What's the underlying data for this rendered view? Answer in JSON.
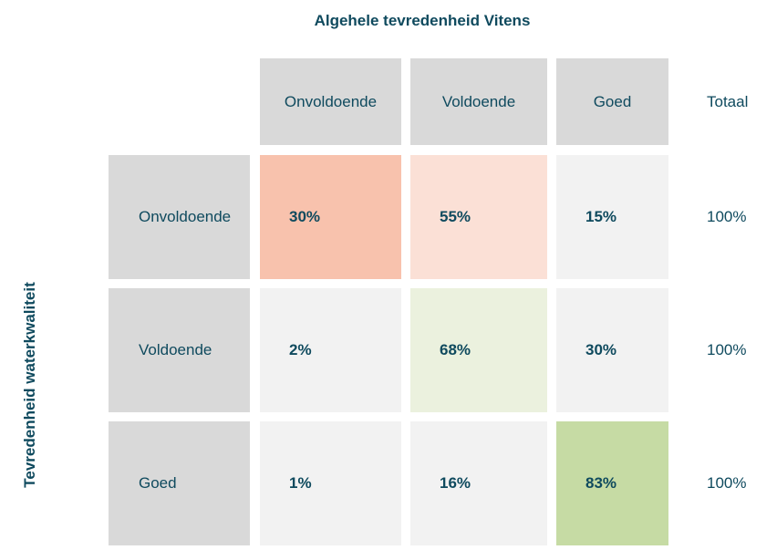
{
  "chart_data": {
    "type": "heatmap",
    "title": "Algehele tevredenheid Vitens",
    "ylabel": "Tevredenheid waterkwaliteit",
    "columns": [
      "Onvoldoende",
      "Voldoende",
      "Goed"
    ],
    "total_label": "Totaal",
    "rows": [
      {
        "label": "Onvoldoende",
        "values": [
          "30%",
          "55%",
          "15%"
        ],
        "total": "100%"
      },
      {
        "label": "Voldoende",
        "values": [
          "2%",
          "68%",
          "30%"
        ],
        "total": "100%"
      },
      {
        "label": "Goed",
        "values": [
          "1%",
          "16%",
          "83%"
        ],
        "total": "100%"
      }
    ],
    "cell_colors": [
      [
        "#f8c2ad",
        "#fbe0d6",
        "#f2f2f2"
      ],
      [
        "#f2f2f2",
        "#ebf1de",
        "#f2f2f2"
      ],
      [
        "#f2f2f2",
        "#f2f2f2",
        "#c6dba4"
      ]
    ],
    "header_color": "#d9d9d9",
    "text_color": "#0f4a5e"
  }
}
